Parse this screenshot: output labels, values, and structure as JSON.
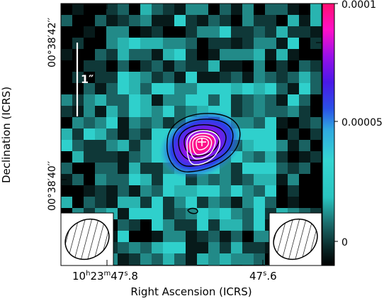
{
  "figure": {
    "x_axis_label": "Right Ascension (ICRS)",
    "y_axis_label": "Declination (ICRS)",
    "x_ticks": [
      {
        "id": "ra-left",
        "text_main": "10",
        "sup1": "h",
        "mid1": "23",
        "sup2": "m",
        "mid2": "47",
        "sup3": "s",
        "tail": ".8"
      },
      {
        "id": "ra-right",
        "text_main": "47",
        "sup3": "s",
        "tail": ".6"
      }
    ],
    "y_ticks": [
      {
        "id": "dec-top",
        "text": "00°38′42′′"
      },
      {
        "id": "dec-bottom",
        "text": "00°38′40′′"
      }
    ],
    "scale_bar_label": "1″",
    "colorbar": {
      "labels": [
        "0.0001",
        "0.00005",
        "0"
      ],
      "colormap": [
        "#000000",
        "#0a2a2a",
        "#1b6b6b",
        "#29c4c0",
        "#35d6d2",
        "#2fa8e0",
        "#2a50e8",
        "#4a18e8",
        "#9a10e8",
        "#ff10c8",
        "#ff1070"
      ]
    },
    "beam_ellipses": [
      "left",
      "right"
    ]
  },
  "chart_data": {
    "type": "heatmap",
    "title": "",
    "xlabel": "Right Ascension (ICRS)",
    "ylabel": "Declination (ICRS)",
    "colorbar_range": [
      0,
      0.0001
    ],
    "colorbar_ticks": [
      0,
      5e-05,
      0.0001
    ],
    "x_tick_labels": [
      "10h23m47.8s",
      "47.6s"
    ],
    "y_tick_labels": [
      "00°38′42″",
      "00°38′40″"
    ],
    "source_peak_value_approx": 0.0001,
    "contours": {
      "black_levels": 4,
      "white_levels": 4,
      "secondary_black_contour": true
    },
    "grid": false
  }
}
